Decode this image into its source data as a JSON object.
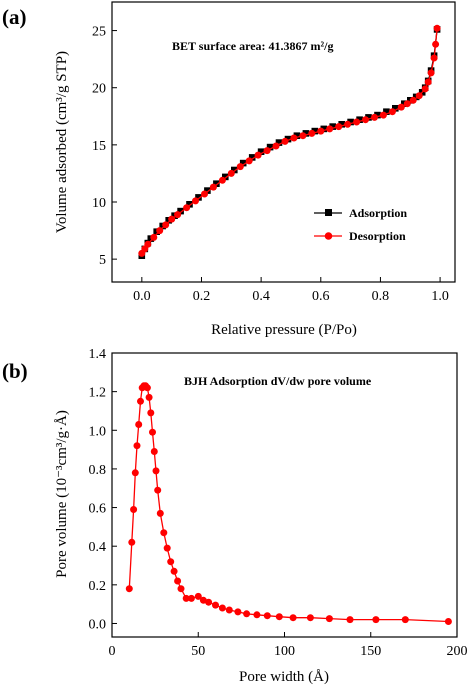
{
  "chart_data": [
    {
      "panel_label": "(a)",
      "type": "line",
      "xlabel": "Relative pressure (P/Po)",
      "ylabel": "Volume adsorbed (cm³/g STP)",
      "annotation": "BET surface area: 41.3867 m²/g",
      "xlim": [
        -0.1,
        1.05
      ],
      "ylim": [
        3,
        27.5
      ],
      "xticks": [
        "0.0",
        "0.2",
        "0.4",
        "0.6",
        "0.8",
        "1.0"
      ],
      "yticks": [
        "5",
        "10",
        "15",
        "20",
        "25"
      ],
      "legend_position": "lower-right",
      "series": [
        {
          "name": "Adsorption",
          "color": "#000000",
          "marker": "square",
          "x": [
            0.0,
            0.01,
            0.02,
            0.03,
            0.05,
            0.07,
            0.09,
            0.11,
            0.13,
            0.16,
            0.19,
            0.22,
            0.25,
            0.28,
            0.31,
            0.34,
            0.37,
            0.4,
            0.43,
            0.46,
            0.49,
            0.52,
            0.55,
            0.58,
            0.61,
            0.64,
            0.67,
            0.7,
            0.73,
            0.76,
            0.79,
            0.82,
            0.85,
            0.88,
            0.9,
            0.92,
            0.94,
            0.95,
            0.96,
            0.97,
            0.98,
            0.99
          ],
          "y": [
            5.3,
            5.9,
            6.4,
            6.8,
            7.4,
            7.9,
            8.4,
            8.8,
            9.2,
            9.8,
            10.4,
            11.0,
            11.6,
            12.2,
            12.8,
            13.4,
            13.9,
            14.4,
            14.8,
            15.2,
            15.5,
            15.8,
            16.0,
            16.2,
            16.4,
            16.6,
            16.8,
            17.0,
            17.2,
            17.4,
            17.6,
            17.9,
            18.2,
            18.6,
            18.9,
            19.2,
            19.6,
            20.0,
            20.6,
            21.5,
            22.8,
            25.1
          ]
        },
        {
          "name": "Desorption",
          "color": "#ff0000",
          "marker": "circle",
          "x": [
            0.99,
            0.985,
            0.98,
            0.97,
            0.96,
            0.95,
            0.93,
            0.91,
            0.89,
            0.87,
            0.84,
            0.81,
            0.78,
            0.75,
            0.72,
            0.69,
            0.66,
            0.63,
            0.6,
            0.57,
            0.54,
            0.51,
            0.48,
            0.45,
            0.42,
            0.39,
            0.36,
            0.33,
            0.3,
            0.27,
            0.24,
            0.21,
            0.18,
            0.15,
            0.12,
            0.1,
            0.08,
            0.06,
            0.04,
            0.02,
            0.01,
            0.0
          ],
          "y": [
            25.2,
            23.8,
            22.6,
            21.3,
            20.5,
            19.9,
            19.3,
            18.9,
            18.6,
            18.3,
            17.9,
            17.6,
            17.4,
            17.2,
            17.0,
            16.8,
            16.6,
            16.4,
            16.2,
            16.0,
            15.8,
            15.6,
            15.3,
            14.9,
            14.5,
            14.1,
            13.6,
            13.1,
            12.5,
            11.9,
            11.3,
            10.7,
            10.1,
            9.5,
            8.9,
            8.5,
            8.0,
            7.5,
            6.9,
            6.3,
            5.9,
            5.5
          ]
        }
      ]
    },
    {
      "panel_label": "(b)",
      "type": "line",
      "xlabel": "Pore width (Å)",
      "ylabel": "Pore volume (10⁻³cm³/g·Å)",
      "annotation": "BJH Adsorption dV/dw pore volume",
      "xlim": [
        0,
        200
      ],
      "ylim": [
        -0.07,
        1.4
      ],
      "xticks": [
        "0",
        "50",
        "100",
        "150",
        "200"
      ],
      "yticks": [
        "0.0",
        "0.2",
        "0.4",
        "0.6",
        "0.8",
        "1.0",
        "1.2",
        "1.4"
      ],
      "series": [
        {
          "name": "",
          "color": "#ff0000",
          "marker": "circle",
          "x": [
            10,
            11.5,
            12.5,
            13.5,
            14.5,
            15.5,
            16.5,
            17.5,
            18.5,
            19.5,
            20.5,
            21.5,
            22.5,
            23.5,
            24.5,
            25.5,
            26.5,
            28,
            30,
            32,
            34,
            36,
            38,
            40,
            43,
            46,
            50,
            53,
            56,
            60,
            64,
            68,
            73,
            78,
            84,
            90,
            97,
            105,
            115,
            126,
            138,
            153,
            170,
            195
          ],
          "y": [
            0.18,
            0.42,
            0.59,
            0.78,
            0.92,
            1.03,
            1.15,
            1.22,
            1.23,
            1.23,
            1.22,
            1.17,
            1.09,
            0.99,
            0.89,
            0.79,
            0.69,
            0.57,
            0.47,
            0.39,
            0.32,
            0.27,
            0.22,
            0.18,
            0.13,
            0.13,
            0.14,
            0.12,
            0.11,
            0.095,
            0.08,
            0.07,
            0.06,
            0.05,
            0.045,
            0.04,
            0.035,
            0.03,
            0.03,
            0.025,
            0.02,
            0.02,
            0.02,
            0.01
          ]
        }
      ]
    }
  ]
}
